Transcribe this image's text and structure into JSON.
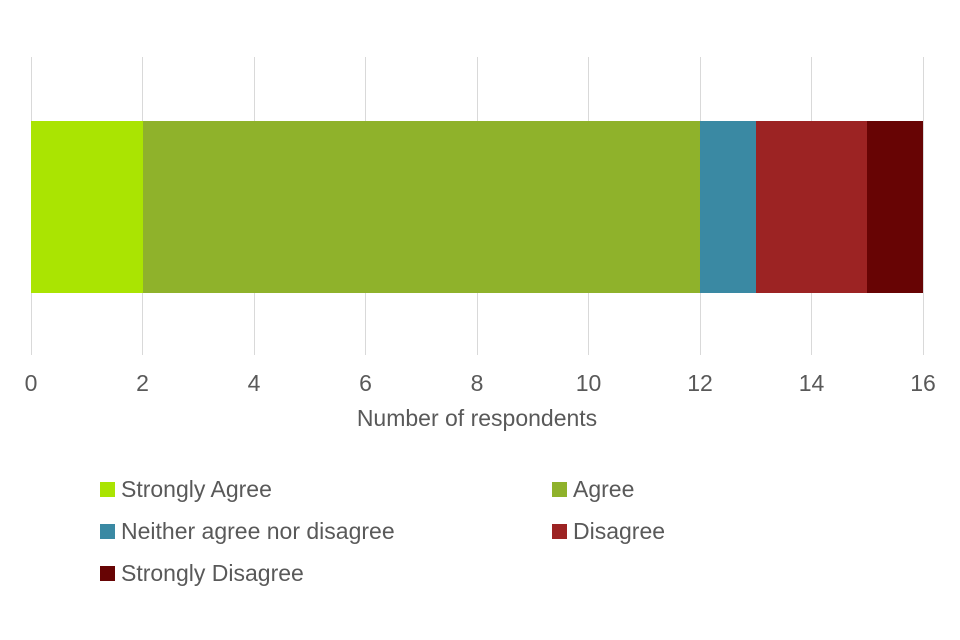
{
  "chart_data": {
    "type": "bar",
    "orientation": "horizontal",
    "stacked": true,
    "title": "",
    "xlabel": "Number of respondents",
    "ylabel": "",
    "xlim": [
      0,
      16
    ],
    "xticks": [
      0,
      2,
      4,
      6,
      8,
      10,
      12,
      14,
      16
    ],
    "grid": true,
    "legend_position": "bottom",
    "series": [
      {
        "name": "Strongly Agree",
        "value": 2,
        "color": "#aae402"
      },
      {
        "name": "Agree",
        "value": 10,
        "color": "#8fb22b"
      },
      {
        "name": "Neither agree nor disagree",
        "value": 1,
        "color": "#3a89a3"
      },
      {
        "name": "Disagree",
        "value": 2,
        "color": "#9c2323"
      },
      {
        "name": "Strongly Disagree",
        "value": 1,
        "color": "#670404"
      }
    ]
  },
  "colors": {
    "background": "#ffffff",
    "gridline": "#d9d9d9",
    "text": "#595959"
  }
}
